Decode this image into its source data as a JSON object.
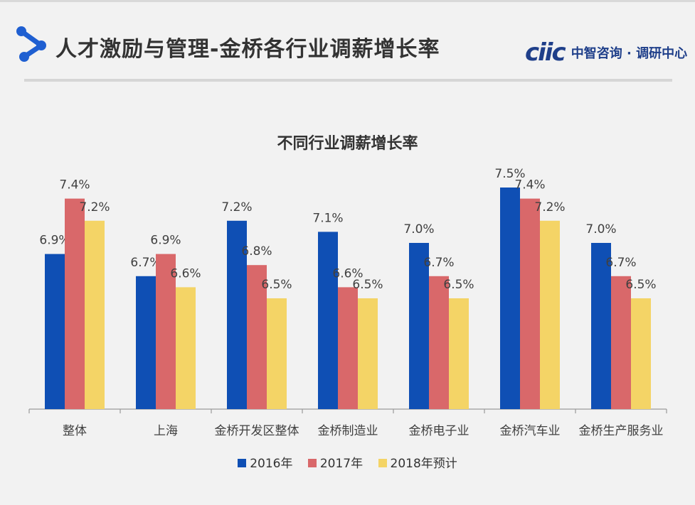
{
  "header": {
    "title": "人才激励与管理-金桥各行业调薪增长率",
    "brand_mark": "ciic",
    "brand_text": "中智咨询 · 调研中心"
  },
  "colors": {
    "s2016": "#0f4fb4",
    "s2017": "#d9686a",
    "s2018": "#f4d466",
    "axis": "#9a9a9a",
    "text": "#404040"
  },
  "chart_data": {
    "type": "bar",
    "title": "不同行业调薪增长率",
    "categories": [
      "整体",
      "上海",
      "金桥开发区整体",
      "金桥制造业",
      "金桥电子业",
      "金桥汽车业",
      "金桥生产服务业"
    ],
    "series": [
      {
        "name": "2016年",
        "values": [
          6.9,
          6.7,
          7.2,
          7.1,
          7.0,
          7.5,
          7.0
        ],
        "labels": [
          "6.9%",
          "6.7%",
          "7.2%",
          "7.1%",
          "7.0%",
          "7.5%",
          "7.0%"
        ]
      },
      {
        "name": "2017年",
        "values": [
          7.4,
          6.9,
          6.8,
          6.6,
          6.7,
          7.4,
          6.7
        ],
        "labels": [
          "7.4%",
          "6.9%",
          "6.8%",
          "6.6%",
          "6.7%",
          "7.4%",
          "6.7%"
        ]
      },
      {
        "name": "2018年预计",
        "values": [
          7.2,
          6.6,
          6.5,
          6.5,
          6.5,
          7.2,
          6.5
        ],
        "labels": [
          "7.2%",
          "6.6%",
          "6.5%",
          "6.5%",
          "6.5%",
          "7.2%",
          "6.5%"
        ]
      }
    ],
    "ylim": [
      5.5,
      7.6
    ],
    "xlabel": "",
    "ylabel": "",
    "legend_position": "bottom",
    "grid": false
  }
}
